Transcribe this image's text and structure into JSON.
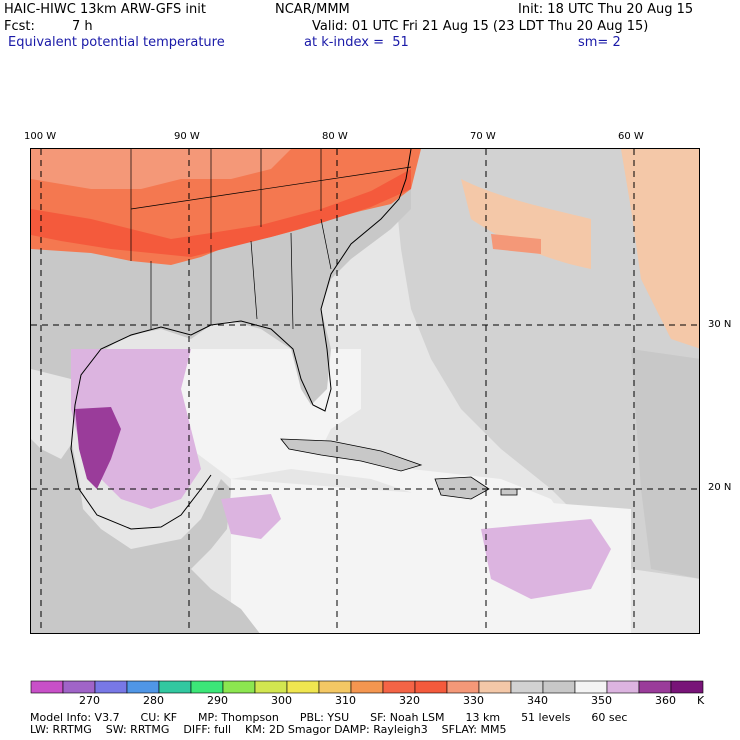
{
  "header": {
    "model_title": "HAIC-HIWC 13km ARW-GFS init",
    "org": "NCAR/MMM",
    "init_time": "Init: 18 UTC Thu 20 Aug 15",
    "fcst_label": "Fcst:",
    "fcst_value": "7 h",
    "valid_time": "Valid: 01 UTC Fri 21 Aug 15 (23 LDT Thu 20 Aug 15)",
    "field_name": "Equivalent potential temperature",
    "level": "at k-index =  51",
    "smoothing": "sm= 2"
  },
  "map": {
    "lon_labels": [
      "100 W",
      "90 W",
      "80 W",
      "70 W",
      "60 W"
    ],
    "lat_labels": [
      "30 N",
      "20 N"
    ],
    "colors": {
      "land_gray": "#c8c8c8",
      "light_gray": "#e6e6e6",
      "white": "#f4f4f4",
      "tan": "#f4c8a8",
      "salmon": "#f49878",
      "orange": "#f47850",
      "red_orange": "#f45a3c",
      "lavender": "#dcb4e0",
      "purple": "#9a3c9a",
      "mid_gray": "#d2d2d2"
    }
  },
  "colorbar": {
    "unit": "K",
    "tick_labels": [
      "270",
      "280",
      "290",
      "300",
      "310",
      "320",
      "330",
      "340",
      "350",
      "360"
    ],
    "colors": [
      "#c850c8",
      "#a064c8",
      "#7878e6",
      "#5096e6",
      "#32c8a0",
      "#3ce678",
      "#8ce650",
      "#d2e650",
      "#f0e650",
      "#f4c864",
      "#f49650",
      "#f46446",
      "#f45a3c",
      "#f49878",
      "#f4c8a8",
      "#d2d2d2",
      "#c8c8c8",
      "#f4f4f4",
      "#dcb4e0",
      "#9a3c9a",
      "#781478"
    ]
  },
  "footer": {
    "line1": "Model Info: V3.7      CU: KF      MP: Thompson      PBL: YSU      SF: Noah LSM      13 km      51 levels      60 sec",
    "line2": "LW: RRTMG    SW: RRTMG    DIFF: full    KM: 2D Smagor DAMP: Rayleigh3    SFLAY: MM5"
  }
}
